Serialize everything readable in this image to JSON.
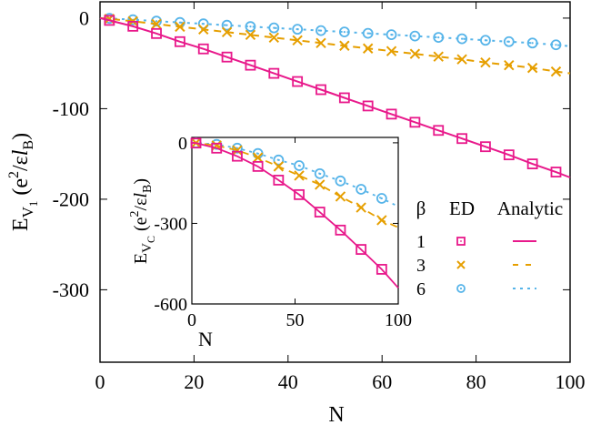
{
  "chart_data": [
    {
      "id": "main",
      "type": "line",
      "xlabel": "N",
      "ylabel": {
        "main": "E",
        "sub": "V",
        "subsub": "1",
        "units_pre": " (e",
        "units_sup": "2",
        "units_mid": "/ε",
        "units_l": "l",
        "units_sub": "B",
        "units_post": ")"
      },
      "xlim": [
        0,
        100
      ],
      "ylim": [
        -380,
        18
      ],
      "xticks": [
        0,
        20,
        40,
        60,
        80,
        100
      ],
      "yticks": [
        0,
        -100,
        -200,
        -300
      ],
      "xtick_labels": [
        "0",
        "20",
        "40",
        "60",
        "80",
        "100"
      ],
      "ytick_labels": [
        "0",
        "-100",
        "-200",
        "-300"
      ],
      "grid": false,
      "x": [
        2,
        7,
        12,
        17,
        22,
        27,
        32,
        37,
        42,
        47,
        52,
        57,
        62,
        67,
        72,
        77,
        82,
        87,
        92,
        97
      ],
      "series": [
        {
          "name": "β=1",
          "beta": "1",
          "marker": "square",
          "line": "solid",
          "color": "#e8198b",
          "ed": [
            -2.5,
            -9,
            -17,
            -26,
            -34,
            -43,
            -52,
            -61,
            -70,
            -79,
            -88,
            -97,
            -106,
            -115,
            -124,
            -133,
            -142,
            -151,
            -161,
            -170
          ],
          "analytic_end": -176
        },
        {
          "name": "β=3",
          "beta": "3",
          "marker": "cross",
          "line": "dashed",
          "color": "#e69f00",
          "ed": [
            -0.8,
            -3.5,
            -6.5,
            -9.5,
            -12.5,
            -15.5,
            -18.5,
            -21.5,
            -24.5,
            -27.5,
            -30.5,
            -33.5,
            -36.5,
            -39.5,
            -42.5,
            -45.5,
            -49,
            -52,
            -55,
            -59
          ],
          "analytic_end": -61
        },
        {
          "name": "β=6",
          "beta": "6",
          "marker": "circle-dot",
          "line": "dotted",
          "color": "#56b4e9",
          "ed": [
            -0.3,
            -1.8,
            -3.3,
            -4.8,
            -6.3,
            -7.8,
            -9.3,
            -10.8,
            -12.3,
            -13.8,
            -15.3,
            -16.8,
            -18.3,
            -19.8,
            -21.3,
            -22.8,
            -24.5,
            -26,
            -27.5,
            -29.5
          ],
          "analytic_end": -31
        }
      ]
    },
    {
      "id": "inset",
      "type": "line",
      "xlabel": "N",
      "ylabel": {
        "main": "E",
        "sub": "V",
        "subsub": "C",
        "units_pre": " (e",
        "units_sup": "2",
        "units_mid": "/ε",
        "units_l": "l",
        "units_sub": "B",
        "units_post": ")"
      },
      "xlim": [
        0,
        100
      ],
      "ylim": [
        -600,
        20
      ],
      "xticks": [
        0,
        50,
        100
      ],
      "yticks": [
        0,
        -300,
        -600
      ],
      "xtick_labels": [
        "0",
        "50",
        "100"
      ],
      "ytick_labels": [
        "0",
        "-300",
        "-600"
      ],
      "grid": false,
      "x": [
        2,
        12,
        22,
        32,
        42,
        52,
        62,
        72,
        82,
        92
      ],
      "series": [
        {
          "name": "β=1",
          "marker": "square",
          "line": "solid",
          "color": "#e8198b",
          "ed": [
            -1,
            -20,
            -50,
            -88,
            -139,
            -193,
            -258,
            -325,
            -397,
            -471
          ],
          "analytic_end": -540
        },
        {
          "name": "β=3",
          "marker": "cross",
          "line": "dashed",
          "color": "#e69f00",
          "ed": [
            -0.5,
            -10,
            -28,
            -55,
            -88,
            -122,
            -156,
            -200,
            -241,
            -288
          ],
          "analytic_end": -315
        },
        {
          "name": "β=6",
          "marker": "circle-dot",
          "line": "dotted",
          "color": "#56b4e9",
          "ed": [
            -0.3,
            -6,
            -20,
            -40,
            -64,
            -85,
            -115,
            -142,
            -173,
            -207
          ],
          "analytic_end": -237
        }
      ]
    }
  ],
  "legend": {
    "placement": "right",
    "headers": {
      "beta": "β",
      "ed": "ED",
      "analytic": "Analytic"
    },
    "rows": [
      {
        "beta": "1",
        "color": "#e8198b",
        "marker": "square",
        "line": "solid"
      },
      {
        "beta": "3",
        "color": "#e69f00",
        "marker": "cross",
        "line": "dashed"
      },
      {
        "beta": "6",
        "color": "#56b4e9",
        "marker": "circle-dot",
        "line": "dotted"
      }
    ]
  }
}
